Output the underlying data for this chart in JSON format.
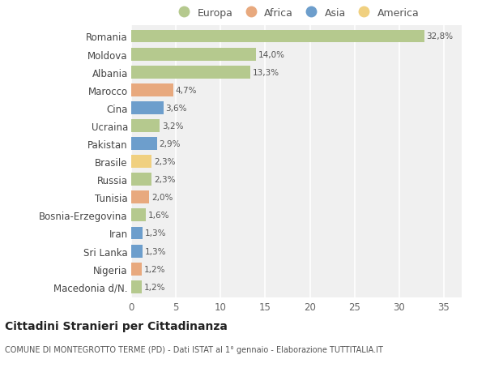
{
  "countries": [
    "Romania",
    "Moldova",
    "Albania",
    "Marocco",
    "Cina",
    "Ucraina",
    "Pakistan",
    "Brasile",
    "Russia",
    "Tunisia",
    "Bosnia-Erzegovina",
    "Iran",
    "Sri Lanka",
    "Nigeria",
    "Macedonia d/N."
  ],
  "values": [
    32.8,
    14.0,
    13.3,
    4.7,
    3.6,
    3.2,
    2.9,
    2.3,
    2.3,
    2.0,
    1.6,
    1.3,
    1.3,
    1.2,
    1.2
  ],
  "labels": [
    "32,8%",
    "14,0%",
    "13,3%",
    "4,7%",
    "3,6%",
    "3,2%",
    "2,9%",
    "2,3%",
    "2,3%",
    "2,0%",
    "1,6%",
    "1,3%",
    "1,3%",
    "1,2%",
    "1,2%"
  ],
  "continents": [
    "Europa",
    "Europa",
    "Europa",
    "Africa",
    "Asia",
    "Europa",
    "Asia",
    "America",
    "Europa",
    "Africa",
    "Europa",
    "Asia",
    "Asia",
    "Africa",
    "Europa"
  ],
  "colors": {
    "Europa": "#b5c98e",
    "Africa": "#e8a97e",
    "Asia": "#6d9ecc",
    "America": "#f0d080"
  },
  "legend_order": [
    "Europa",
    "Africa",
    "Asia",
    "America"
  ],
  "title": "Cittadini Stranieri per Cittadinanza",
  "subtitle": "COMUNE DI MONTEGROTTO TERME (PD) - Dati ISTAT al 1° gennaio - Elaborazione TUTTITALIA.IT",
  "xlim": [
    0,
    37
  ],
  "xticks": [
    0,
    5,
    10,
    15,
    20,
    25,
    30,
    35
  ],
  "bg_color": "#f0f0f0",
  "grid_color": "#ffffff",
  "bar_height": 0.72
}
